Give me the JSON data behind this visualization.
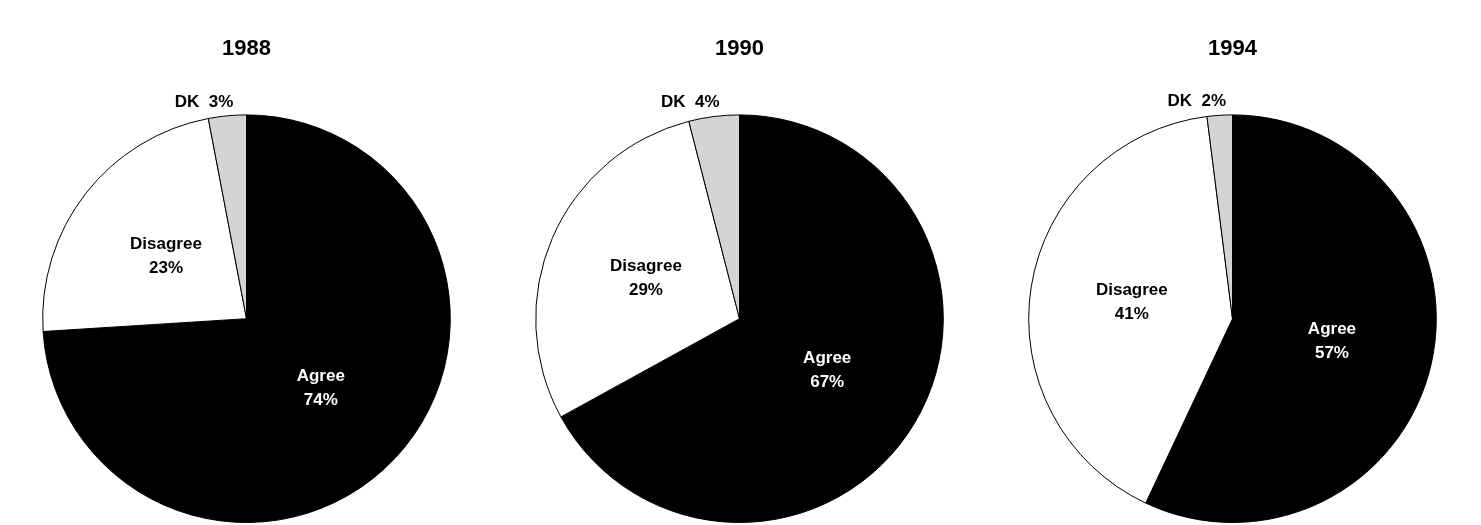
{
  "chart_data": [
    {
      "type": "pie",
      "title": "1988",
      "categories": [
        "Agree",
        "Disagree",
        "DK"
      ],
      "values": [
        74,
        23,
        3
      ],
      "value_labels": [
        "74%",
        "23%",
        "3%"
      ],
      "colors": [
        "#000000",
        "#ffffff",
        "#d4d4d4"
      ],
      "legend": false
    },
    {
      "type": "pie",
      "title": "1990",
      "categories": [
        "Agree",
        "Disagree",
        "DK"
      ],
      "values": [
        67,
        29,
        4
      ],
      "value_labels": [
        "67%",
        "29%",
        "4%"
      ],
      "colors": [
        "#000000",
        "#ffffff",
        "#d4d4d4"
      ],
      "legend": false
    },
    {
      "type": "pie",
      "title": "1994",
      "categories": [
        "Agree",
        "Disagree",
        "DK"
      ],
      "values": [
        57,
        41,
        2
      ],
      "value_labels": [
        "57%",
        "41%",
        "2%"
      ],
      "colors": [
        "#000000",
        "#ffffff",
        "#d4d4d4"
      ],
      "legend": false
    }
  ]
}
